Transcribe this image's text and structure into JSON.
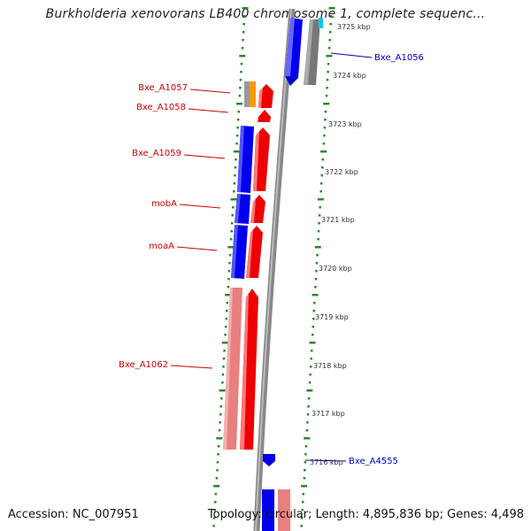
{
  "title": "Burkholderia xenovorans LB400 chromosome 1, complete sequenc...",
  "accession": "Accession: NC_007951",
  "topology": "Topology: circular; Length: 4,895,836 bp; Genes: 4,498",
  "scale_labels": [
    "3725 kbp",
    "3724 kbp",
    "3723 kbp",
    "3722 kbp",
    "3721 kbp",
    "3720 kbp",
    "3719 kbp",
    "3718 kbp",
    "3717 kbp",
    "3716 kbp"
  ],
  "gene_labels": {
    "Bxe_A1056": "Bxe_A1056",
    "Bxe_A1057": "Bxe_A1057",
    "Bxe_A1058": "Bxe_A1058",
    "Bxe_A1059": "Bxe_A1059",
    "mobA": "mobA",
    "moaA": "moaA",
    "Bxe_A1062": "Bxe_A1062",
    "Bxe_A4555": "Bxe_A4555"
  },
  "colors": {
    "reverse_label": "#cc0000",
    "forward_label": "#0000bb",
    "dots": "#2a8a2a",
    "red_gene": "#ee0000",
    "pink_gene": "#e88080",
    "blue_gene": "#0000ee",
    "gray_gene": "#777777",
    "orange_gene": "#ff9900",
    "backbone": "#888888"
  }
}
